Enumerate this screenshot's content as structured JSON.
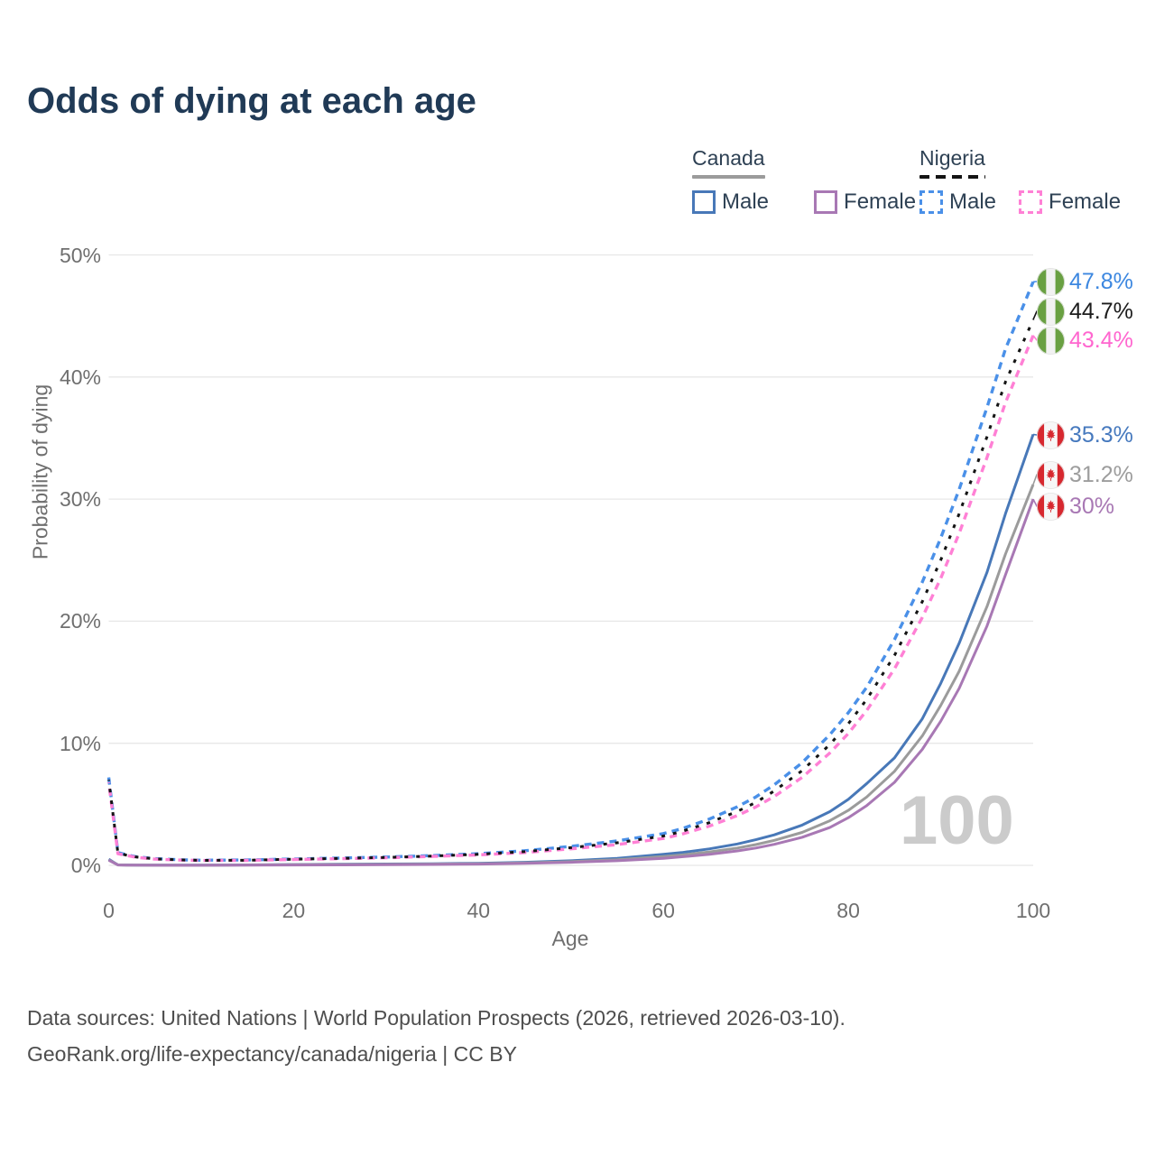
{
  "title": "Odds of dying at each age",
  "legend": {
    "groups": [
      {
        "id": "canada",
        "label": "Canada",
        "line_style": "solid",
        "line_color": "#9b9b9b",
        "items": [
          {
            "id": "canada-male",
            "label": "Male",
            "color": "#4878b8",
            "dashed": false
          },
          {
            "id": "canada-female",
            "label": "Female",
            "color": "#a878b4",
            "dashed": false
          }
        ]
      },
      {
        "id": "nigeria",
        "label": "Nigeria",
        "line_style": "dashed",
        "line_color": "#141414",
        "items": [
          {
            "id": "nigeria-male",
            "label": "Male",
            "color": "#4a90e8",
            "dashed": true
          },
          {
            "id": "nigeria-female",
            "label": "Female",
            "color": "#ff80d5",
            "dashed": true
          }
        ]
      }
    ]
  },
  "chart_data": {
    "type": "line",
    "title": "Odds of dying at each age",
    "xlabel": "Age",
    "ylabel": "Probability of dying",
    "xlim": [
      0,
      100
    ],
    "ylim": [
      0,
      50
    ],
    "x_ticks": [
      0,
      20,
      40,
      60,
      80,
      100
    ],
    "y_tick_values": [
      0,
      10,
      20,
      30,
      40,
      50
    ],
    "y_tick_labels": [
      "0%",
      "10%",
      "20%",
      "30%",
      "40%",
      "50%"
    ],
    "grid": true,
    "watermark": "100",
    "legend_position": "top-right",
    "series": [
      {
        "id": "canada-male",
        "name": "Canada Male",
        "country": "Canada",
        "sex": "Male",
        "color": "#4878b8",
        "dashed": false,
        "width": 3,
        "end_value": 35.3,
        "end_label": "35.3%",
        "label_color": "#4679be",
        "flag": "canada",
        "points": [
          [
            0,
            0.5
          ],
          [
            1,
            0.04
          ],
          [
            2,
            0.03
          ],
          [
            3,
            0.02
          ],
          [
            5,
            0.015
          ],
          [
            8,
            0.012
          ],
          [
            10,
            0.012
          ],
          [
            15,
            0.04
          ],
          [
            20,
            0.07
          ],
          [
            25,
            0.09
          ],
          [
            30,
            0.11
          ],
          [
            35,
            0.13
          ],
          [
            40,
            0.17
          ],
          [
            45,
            0.25
          ],
          [
            50,
            0.38
          ],
          [
            55,
            0.58
          ],
          [
            60,
            0.9
          ],
          [
            62,
            1.05
          ],
          [
            65,
            1.35
          ],
          [
            68,
            1.75
          ],
          [
            70,
            2.1
          ],
          [
            72,
            2.5
          ],
          [
            75,
            3.3
          ],
          [
            78,
            4.4
          ],
          [
            80,
            5.4
          ],
          [
            82,
            6.7
          ],
          [
            85,
            8.8
          ],
          [
            88,
            12.0
          ],
          [
            90,
            14.9
          ],
          [
            92,
            18.2
          ],
          [
            95,
            24.0
          ],
          [
            97,
            28.8
          ],
          [
            100,
            35.3
          ]
        ]
      },
      {
        "id": "canada-both",
        "name": "Canada Both sexes",
        "country": "Canada",
        "sex": "Both",
        "color": "#9b9b9b",
        "dashed": false,
        "width": 3,
        "end_value": 31.2,
        "end_label": "31.2%",
        "label_color": "#9d9d9d",
        "flag": "canada",
        "points": [
          [
            0,
            0.45
          ],
          [
            1,
            0.035
          ],
          [
            2,
            0.025
          ],
          [
            3,
            0.018
          ],
          [
            5,
            0.013
          ],
          [
            8,
            0.01
          ],
          [
            10,
            0.01
          ],
          [
            15,
            0.03
          ],
          [
            20,
            0.05
          ],
          [
            25,
            0.065
          ],
          [
            30,
            0.08
          ],
          [
            35,
            0.1
          ],
          [
            40,
            0.13
          ],
          [
            45,
            0.2
          ],
          [
            50,
            0.3
          ],
          [
            55,
            0.46
          ],
          [
            60,
            0.72
          ],
          [
            62,
            0.85
          ],
          [
            65,
            1.1
          ],
          [
            68,
            1.42
          ],
          [
            70,
            1.7
          ],
          [
            72,
            2.05
          ],
          [
            75,
            2.7
          ],
          [
            78,
            3.65
          ],
          [
            80,
            4.5
          ],
          [
            82,
            5.6
          ],
          [
            85,
            7.7
          ],
          [
            88,
            10.6
          ],
          [
            90,
            13.1
          ],
          [
            92,
            15.9
          ],
          [
            95,
            21.2
          ],
          [
            97,
            25.5
          ],
          [
            100,
            31.2
          ]
        ]
      },
      {
        "id": "canada-female",
        "name": "Canada Female",
        "country": "Canada",
        "sex": "Female",
        "color": "#a878b4",
        "dashed": false,
        "width": 3,
        "end_value": 30,
        "end_label": "30%",
        "label_color": "#a878b4",
        "flag": "canada",
        "points": [
          [
            0,
            0.42
          ],
          [
            1,
            0.03
          ],
          [
            2,
            0.02
          ],
          [
            3,
            0.015
          ],
          [
            5,
            0.011
          ],
          [
            8,
            0.009
          ],
          [
            10,
            0.009
          ],
          [
            15,
            0.02
          ],
          [
            20,
            0.03
          ],
          [
            25,
            0.04
          ],
          [
            30,
            0.055
          ],
          [
            35,
            0.075
          ],
          [
            40,
            0.1
          ],
          [
            45,
            0.16
          ],
          [
            50,
            0.25
          ],
          [
            55,
            0.38
          ],
          [
            60,
            0.58
          ],
          [
            62,
            0.7
          ],
          [
            65,
            0.9
          ],
          [
            68,
            1.18
          ],
          [
            70,
            1.42
          ],
          [
            72,
            1.72
          ],
          [
            75,
            2.3
          ],
          [
            78,
            3.1
          ],
          [
            80,
            3.9
          ],
          [
            82,
            4.9
          ],
          [
            85,
            6.8
          ],
          [
            88,
            9.5
          ],
          [
            90,
            11.8
          ],
          [
            92,
            14.5
          ],
          [
            95,
            19.6
          ],
          [
            97,
            23.8
          ],
          [
            100,
            30.0
          ]
        ]
      },
      {
        "id": "nigeria-male",
        "name": "Nigeria Male",
        "country": "Nigeria",
        "sex": "Male",
        "color": "#4a90e8",
        "dashed": true,
        "width": 3.4,
        "end_value": 47.8,
        "end_label": "47.8%",
        "label_color": "#3c87e0",
        "flag": "nigeria",
        "points": [
          [
            0,
            7.2
          ],
          [
            1,
            1.05
          ],
          [
            2,
            0.85
          ],
          [
            3,
            0.7
          ],
          [
            5,
            0.55
          ],
          [
            8,
            0.45
          ],
          [
            10,
            0.42
          ],
          [
            15,
            0.44
          ],
          [
            20,
            0.52
          ],
          [
            25,
            0.6
          ],
          [
            30,
            0.68
          ],
          [
            35,
            0.8
          ],
          [
            40,
            0.95
          ],
          [
            45,
            1.2
          ],
          [
            50,
            1.55
          ],
          [
            55,
            2.0
          ],
          [
            60,
            2.6
          ],
          [
            62,
            3.0
          ],
          [
            65,
            3.8
          ],
          [
            68,
            4.8
          ],
          [
            70,
            5.6
          ],
          [
            72,
            6.6
          ],
          [
            75,
            8.4
          ],
          [
            78,
            10.7
          ],
          [
            80,
            12.5
          ],
          [
            82,
            14.6
          ],
          [
            85,
            18.5
          ],
          [
            88,
            23.2
          ],
          [
            90,
            26.8
          ],
          [
            92,
            30.8
          ],
          [
            95,
            37.5
          ],
          [
            97,
            42.3
          ],
          [
            100,
            47.8
          ]
        ]
      },
      {
        "id": "nigeria-female",
        "name": "Nigeria Female",
        "country": "Nigeria",
        "sex": "Female",
        "color": "#ff80d5",
        "dashed": true,
        "width": 3.4,
        "end_value": 43.4,
        "end_label": "43.4%",
        "label_color": "#ff66cf",
        "flag": "nigeria",
        "points": [
          [
            0,
            6.8
          ],
          [
            1,
            0.95
          ],
          [
            2,
            0.8
          ],
          [
            3,
            0.66
          ],
          [
            5,
            0.51
          ],
          [
            8,
            0.43
          ],
          [
            10,
            0.4
          ],
          [
            15,
            0.41
          ],
          [
            20,
            0.48
          ],
          [
            25,
            0.55
          ],
          [
            30,
            0.62
          ],
          [
            35,
            0.73
          ],
          [
            40,
            0.86
          ],
          [
            45,
            1.05
          ],
          [
            50,
            1.35
          ],
          [
            55,
            1.7
          ],
          [
            60,
            2.2
          ],
          [
            62,
            2.56
          ],
          [
            65,
            3.22
          ],
          [
            68,
            4.08
          ],
          [
            70,
            4.78
          ],
          [
            72,
            5.65
          ],
          [
            75,
            7.2
          ],
          [
            78,
            9.2
          ],
          [
            80,
            10.8
          ],
          [
            82,
            12.7
          ],
          [
            85,
            16.1
          ],
          [
            88,
            20.3
          ],
          [
            90,
            23.5
          ],
          [
            92,
            27.2
          ],
          [
            95,
            33.4
          ],
          [
            97,
            37.9
          ],
          [
            100,
            43.4
          ]
        ]
      },
      {
        "id": "nigeria-both",
        "name": "Nigeria Both sexes",
        "country": "Nigeria",
        "sex": "Both",
        "color": "#141414",
        "dashed": true,
        "width": 3,
        "end_value": 44.7,
        "end_label": "44.7%",
        "label_color": "#1c1c1c",
        "flag": "nigeria",
        "points": [
          [
            0,
            7.0
          ],
          [
            1,
            1.0
          ],
          [
            2,
            0.82
          ],
          [
            3,
            0.68
          ],
          [
            5,
            0.53
          ],
          [
            8,
            0.44
          ],
          [
            10,
            0.41
          ],
          [
            15,
            0.42
          ],
          [
            20,
            0.5
          ],
          [
            25,
            0.57
          ],
          [
            30,
            0.65
          ],
          [
            35,
            0.76
          ],
          [
            40,
            0.9
          ],
          [
            45,
            1.12
          ],
          [
            50,
            1.45
          ],
          [
            55,
            1.85
          ],
          [
            60,
            2.4
          ],
          [
            62,
            2.78
          ],
          [
            65,
            3.5
          ],
          [
            68,
            4.42
          ],
          [
            70,
            5.15
          ],
          [
            72,
            6.1
          ],
          [
            75,
            7.75
          ],
          [
            78,
            9.9
          ],
          [
            80,
            11.6
          ],
          [
            82,
            13.6
          ],
          [
            85,
            17.2
          ],
          [
            88,
            21.6
          ],
          [
            90,
            25.0
          ],
          [
            92,
            28.8
          ],
          [
            95,
            35.1
          ],
          [
            97,
            39.6
          ],
          [
            100,
            44.7
          ]
        ]
      }
    ]
  },
  "footer": {
    "line1": "Data sources: United Nations | World Population Prospects (2026, retrieved 2026-03-10).",
    "line2": "GeoRank.org/life-expectancy/canada/nigeria | CC BY"
  }
}
